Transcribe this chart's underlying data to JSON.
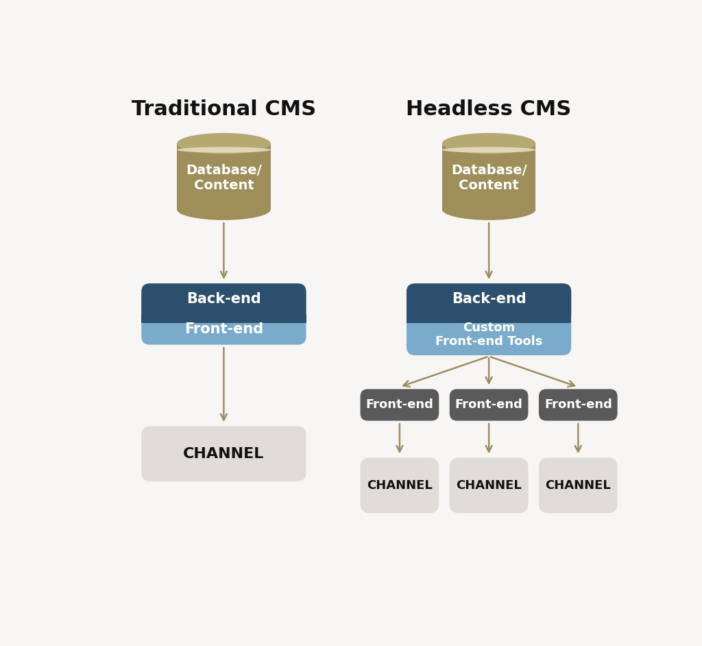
{
  "bg_color": "#f7f6f4",
  "title_left": "Traditional CMS",
  "title_right": "Headless CMS",
  "title_fontsize": 22,
  "title_fontweight": "bold",
  "arrow_color": "#9e8c60",
  "db_body_color": "#9e8e5a",
  "db_top_color": "#b5a870",
  "db_stripe_color": "#e8e0c8",
  "db_text": "Database/\nContent",
  "db_text_color": "#ffffff",
  "backend_color": "#2d4f6e",
  "backend_text": "Back-end",
  "frontend_trad_color": "#7aabca",
  "frontend_trad_text": "Front-end",
  "frontend_head_color": "#7aabca",
  "frontend_head_text": "Custom\nFront-end Tools",
  "text_color_white": "#ffffff",
  "frontend_node_color": "#5a5a5a",
  "frontend_node_text": "Front-end",
  "channel_color": "#e0ddd8",
  "channel_text": "CHANNEL",
  "channel_text_color": "#111111"
}
